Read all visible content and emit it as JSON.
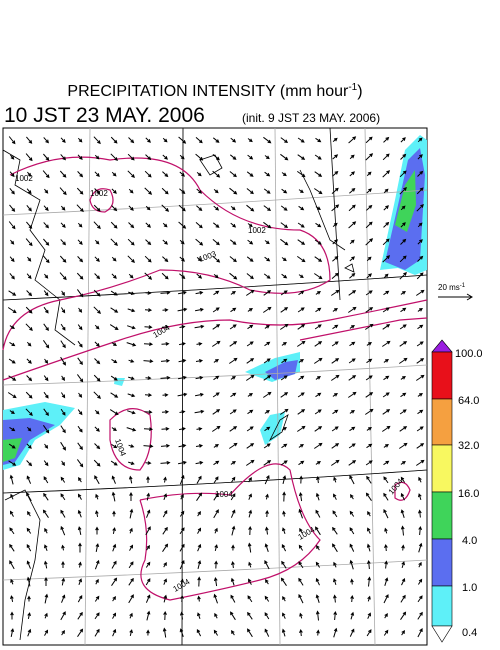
{
  "header": {
    "title": "PRECIPITATION INTENSITY (mm hour",
    "title_exponent": "-1",
    "title_close": ")",
    "valid_time": "10 JST 23 MAY. 2006",
    "init_time": "(init. 9 JST 23 MAY. 2006)"
  },
  "wind_reference": {
    "label": "20 ms",
    "exponent": "-1"
  },
  "colorbar": {
    "labels": [
      "100.0",
      "64.0",
      "32.0",
      "16.0",
      "4.0",
      "1.0",
      "0.4"
    ]
  },
  "contours": {
    "labels": [
      "1002",
      "1002",
      "1002",
      "1003",
      "1004",
      "1004",
      "1004",
      "1004",
      "1004",
      "1004"
    ]
  }
}
